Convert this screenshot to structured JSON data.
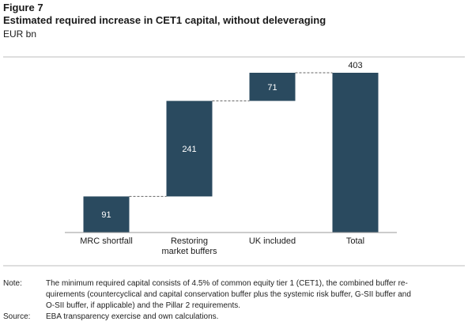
{
  "figure": {
    "label": "Figure 7",
    "title": "Estimated required increase in CET1 capital, without deleveraging",
    "unit": "EUR bn"
  },
  "chart_data": {
    "type": "bar",
    "subtype": "waterfall",
    "categories": [
      "MRC shortfall",
      "Restoring market buffers",
      "UK included",
      "Total"
    ],
    "category_lines": [
      [
        "MRC shortfall"
      ],
      [
        "Restoring",
        "market buffers"
      ],
      [
        "UK included"
      ],
      [
        "Total"
      ]
    ],
    "values": [
      91,
      241,
      71,
      403
    ],
    "bases": [
      0,
      91,
      332,
      0
    ],
    "data_labels": [
      "91",
      "241",
      "71",
      "403"
    ],
    "ylim": [
      0,
      410
    ],
    "grid": false,
    "legend": "none",
    "colors": {
      "bar": "#2a4a5f",
      "connector": "#666666",
      "axis": "#999999",
      "label_inside": "#ffffff",
      "label_outside": "#1a1a1a"
    }
  },
  "notes": [
    {
      "key": "Note:",
      "lines": [
        "The minimum required capital consists of 4.5% of common equity tier 1 (CET1), the combined buffer re-",
        "quirements (countercyclical and capital conservation buffer plus the systemic risk buffer, G-SII buffer and",
        "O-SII buffer, if applicable) and the Pillar 2 requirements."
      ]
    },
    {
      "key": "Source:",
      "lines": [
        "EBA transparency exercise and own calculations."
      ]
    }
  ]
}
